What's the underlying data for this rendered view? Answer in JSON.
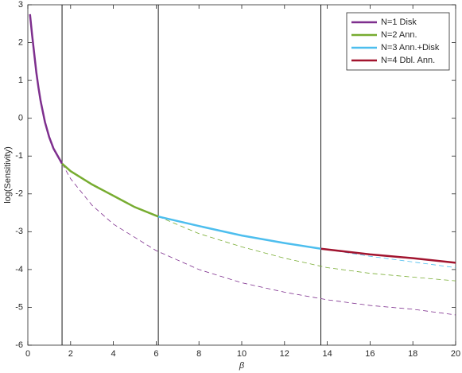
{
  "chart_data": {
    "type": "line",
    "xlabel": "β",
    "ylabel": "log(Sensitivity)",
    "xlim": [
      0,
      20
    ],
    "ylim": [
      -6,
      3
    ],
    "xticks": [
      0,
      2,
      4,
      6,
      8,
      10,
      12,
      14,
      16,
      18,
      20
    ],
    "yticks": [
      -6,
      -5,
      -4,
      -3,
      -2,
      -1,
      0,
      1,
      2,
      3
    ],
    "boundaries": [
      1.6,
      6.1,
      13.7
    ],
    "legend": "top-right",
    "series": [
      {
        "name": "N=1 Disk",
        "color": "#7e2f8e",
        "x": [
          0.1,
          0.2,
          0.3,
          0.4,
          0.5,
          0.6,
          0.8,
          1.0,
          1.2,
          1.4,
          1.6
        ],
        "values": [
          2.75,
          2.2,
          1.7,
          1.2,
          0.8,
          0.45,
          -0.1,
          -0.5,
          -0.8,
          -1.0,
          -1.2
        ],
        "dashed_x": [
          1.6,
          2,
          3,
          4,
          6,
          8,
          10,
          12,
          14,
          16,
          18,
          20
        ],
        "dashed_values": [
          -1.2,
          -1.6,
          -2.3,
          -2.8,
          -3.5,
          -4.0,
          -4.35,
          -4.6,
          -4.8,
          -4.95,
          -5.05,
          -5.2
        ]
      },
      {
        "name": "N=2 Ann.",
        "color": "#77ac30",
        "x": [
          1.6,
          2,
          3,
          4,
          5,
          6.1
        ],
        "values": [
          -1.2,
          -1.4,
          -1.75,
          -2.05,
          -2.35,
          -2.6
        ],
        "dashed_x": [
          6.1,
          8,
          10,
          12,
          14,
          16,
          18,
          20
        ],
        "dashed_values": [
          -2.6,
          -3.05,
          -3.4,
          -3.7,
          -3.95,
          -4.1,
          -4.2,
          -4.3
        ]
      },
      {
        "name": "N=3 Ann.+Disk",
        "color": "#4dbeee",
        "x": [
          6.1,
          8,
          10,
          12,
          13.7
        ],
        "values": [
          -2.6,
          -2.85,
          -3.1,
          -3.3,
          -3.45
        ],
        "dashed_x": [
          13.7,
          16,
          18,
          20
        ],
        "dashed_values": [
          -3.45,
          -3.65,
          -3.8,
          -3.95
        ]
      },
      {
        "name": "N=4 Dbl. Ann.",
        "color": "#a2142f",
        "x": [
          13.7,
          16,
          18,
          20
        ],
        "values": [
          -3.45,
          -3.6,
          -3.7,
          -3.82
        ]
      }
    ]
  }
}
